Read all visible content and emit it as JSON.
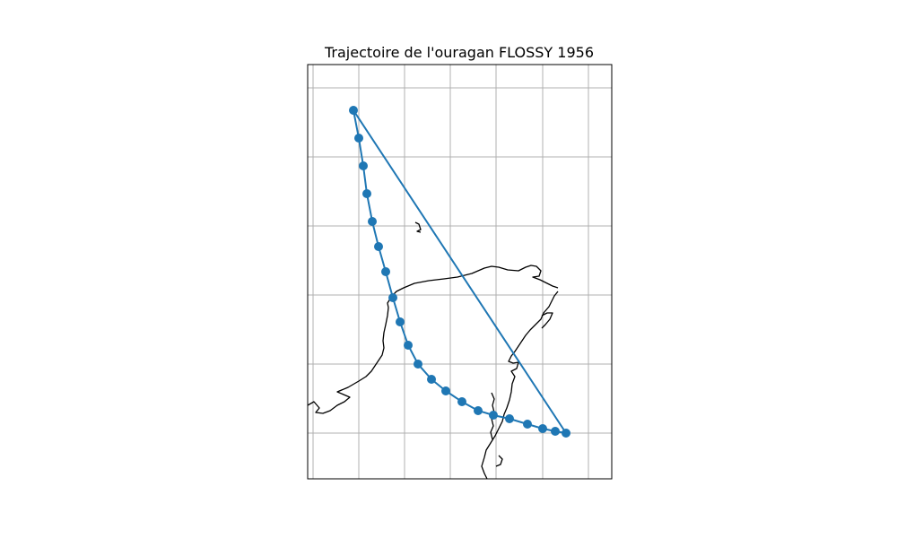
{
  "chart_data": {
    "type": "map",
    "title": "Trajectoire de l'ouragan FLOSSY 1956",
    "grid": true,
    "colors": {
      "track": "#1f77b4",
      "coastline": "#000000",
      "grid": "#b0b0b0"
    }
  }
}
